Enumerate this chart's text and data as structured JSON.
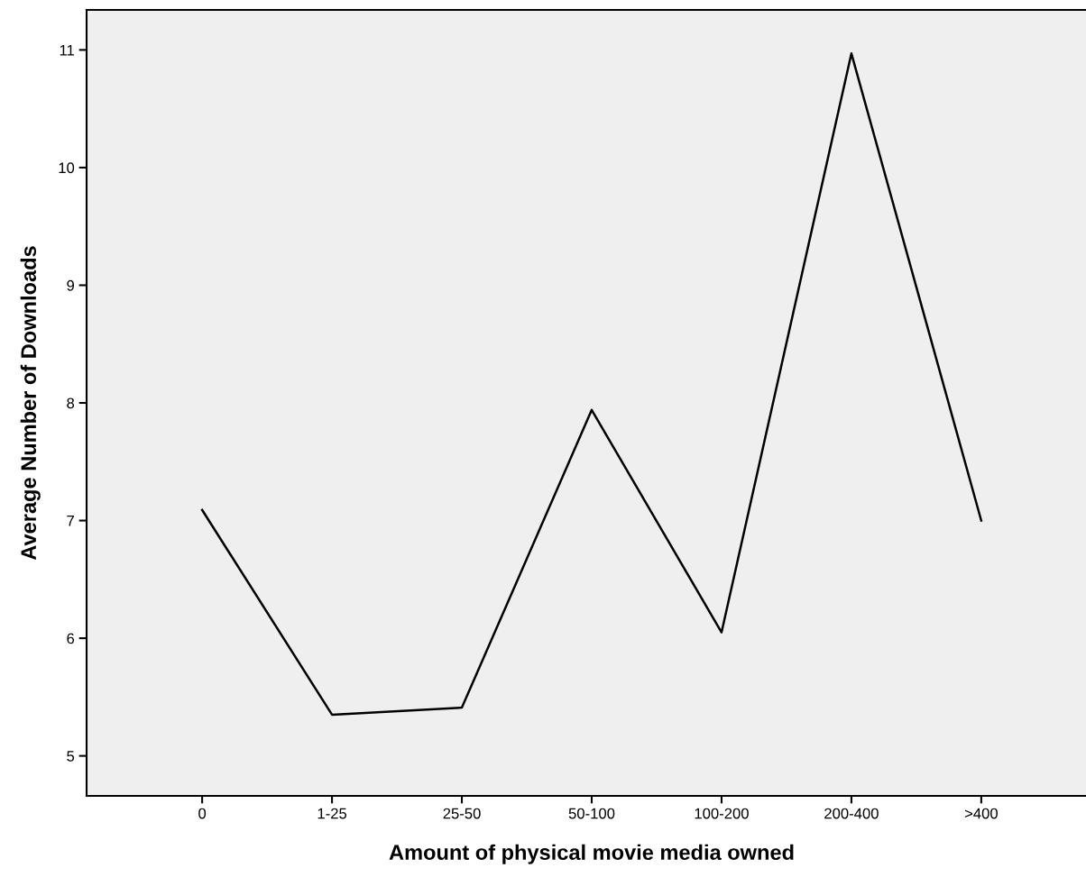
{
  "chart_data": {
    "type": "line",
    "xlabel": "Amount of physical movie media owned",
    "ylabel": "Average Number of Downloads",
    "categories": [
      "0",
      "1-25",
      "25-50",
      "50-100",
      "100-200",
      "200-400",
      ">400"
    ],
    "series": [
      {
        "color": "#000000",
        "values": [
          7.09,
          5.35,
          5.41,
          7.94,
          6.05,
          10.97,
          7.0
        ]
      }
    ],
    "ylim": [
      4.66,
      11.34
    ],
    "yticks": [
      5,
      6,
      7,
      8,
      9,
      10,
      11
    ],
    "grid": false,
    "legend": false,
    "marker": "none",
    "line_style": "solid"
  }
}
